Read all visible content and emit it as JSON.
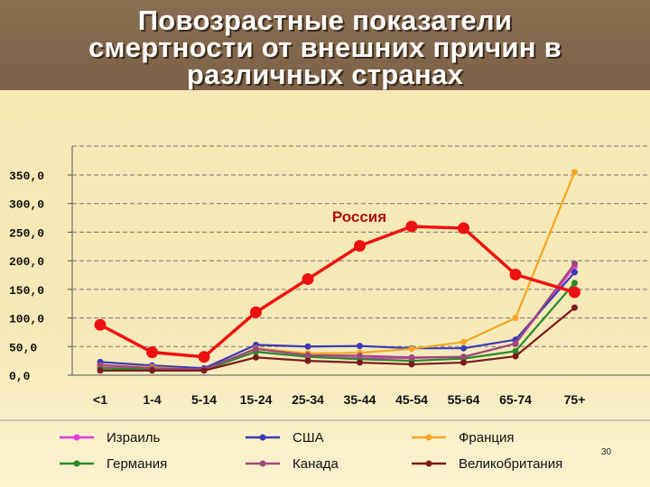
{
  "slide": {
    "title": "Повозрастные показатели\nсмертности от внешних причин в\nразличных странах",
    "page_number": "30"
  },
  "chart_data": {
    "type": "line",
    "title": "",
    "xlabel": "",
    "ylabel": "",
    "categories": [
      "<1",
      "1-4",
      "5-14",
      "15-24",
      "25-34",
      "35-44",
      "45-54",
      "55-64",
      "65-74",
      "75+"
    ],
    "y_ticks": [
      "0,0",
      "50,0",
      "100,0",
      "150,0",
      "200,0",
      "250,0",
      "300,0",
      "350,0"
    ],
    "ylim": [
      0,
      350
    ],
    "grid": true,
    "legend_position": "bottom",
    "annotation": "Россия",
    "series": [
      {
        "name": "Россия",
        "color": "#ee1111",
        "values": [
          88,
          40,
          32,
          110,
          168,
          226,
          260,
          257,
          176,
          145
        ],
        "legend": false
      },
      {
        "name": "Израиль",
        "color": "#e23adf",
        "values": [
          14,
          12,
          10,
          41,
          32,
          30,
          30,
          32,
          55,
          190
        ],
        "legend": true
      },
      {
        "name": "США",
        "color": "#3a3ab8",
        "values": [
          23,
          17,
          12,
          53,
          50,
          51,
          47,
          47,
          62,
          180
        ],
        "legend": true
      },
      {
        "name": "Франция",
        "color": "#f5a623",
        "values": [
          17,
          14,
          9,
          47,
          38,
          39,
          46,
          58,
          100,
          355
        ],
        "legend": true
      },
      {
        "name": "Германия",
        "color": "#2a8a2a",
        "values": [
          12,
          10,
          9,
          41,
          32,
          28,
          25,
          29,
          42,
          161
        ],
        "legend": true
      },
      {
        "name": "Канада",
        "color": "#9c4a7a",
        "values": [
          18,
          12,
          10,
          46,
          35,
          34,
          31,
          32,
          55,
          195
        ],
        "legend": true
      },
      {
        "name": "Великобритания",
        "color": "#7a1a1a",
        "values": [
          8,
          8,
          8,
          31,
          25,
          22,
          19,
          22,
          33,
          118
        ],
        "legend": true
      }
    ]
  }
}
